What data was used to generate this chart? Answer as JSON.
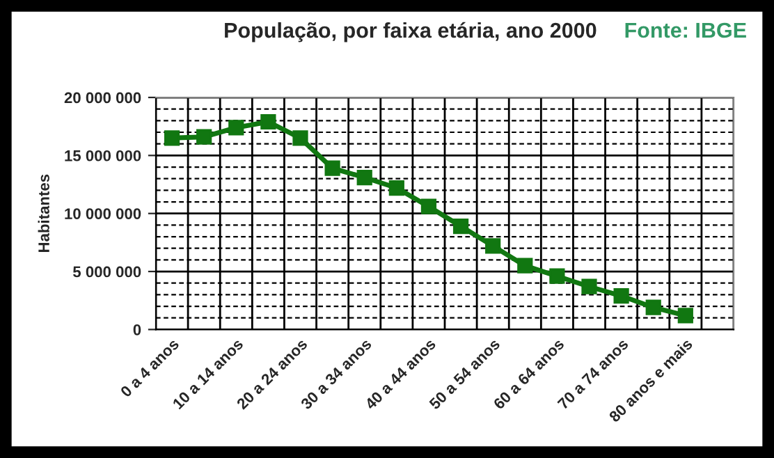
{
  "chart_data": {
    "type": "line",
    "title": "População, por faixa etária, ano 2000",
    "ylabel": "Habitantes",
    "annotations": [
      "Fonte: IBGE"
    ],
    "categories": [
      "0 a 4 anos",
      null,
      "10 a 14 anos",
      null,
      "20 a 24 anos",
      null,
      "30 a 34 anos",
      null,
      "40 a 44 anos",
      null,
      "50 a 54 anos",
      null,
      "60 a 64 anos",
      null,
      "70 a 74 anos",
      null,
      "80 anos e mais",
      null
    ],
    "series": [
      {
        "color": "#117711",
        "values": [
          16500000,
          16600000,
          17400000,
          17900000,
          16500000,
          13900000,
          13100000,
          12200000,
          10600000,
          8900000,
          7200000,
          5500000,
          4600000,
          3700000,
          2900000,
          1900000,
          1200000,
          null
        ]
      }
    ],
    "ylim": [
      0,
      20000000
    ],
    "yticks": [
      {
        "value": 0,
        "label": "0"
      },
      {
        "value": 5000000,
        "label": "5 000 000"
      },
      {
        "value": 10000000,
        "label": "10 000 000"
      },
      {
        "value": 15000000,
        "label": "15 000 000"
      },
      {
        "value": 20000000,
        "label": "20 000 000"
      }
    ],
    "grid": true,
    "marker": "square",
    "line_style": "solid",
    "legend": false
  }
}
